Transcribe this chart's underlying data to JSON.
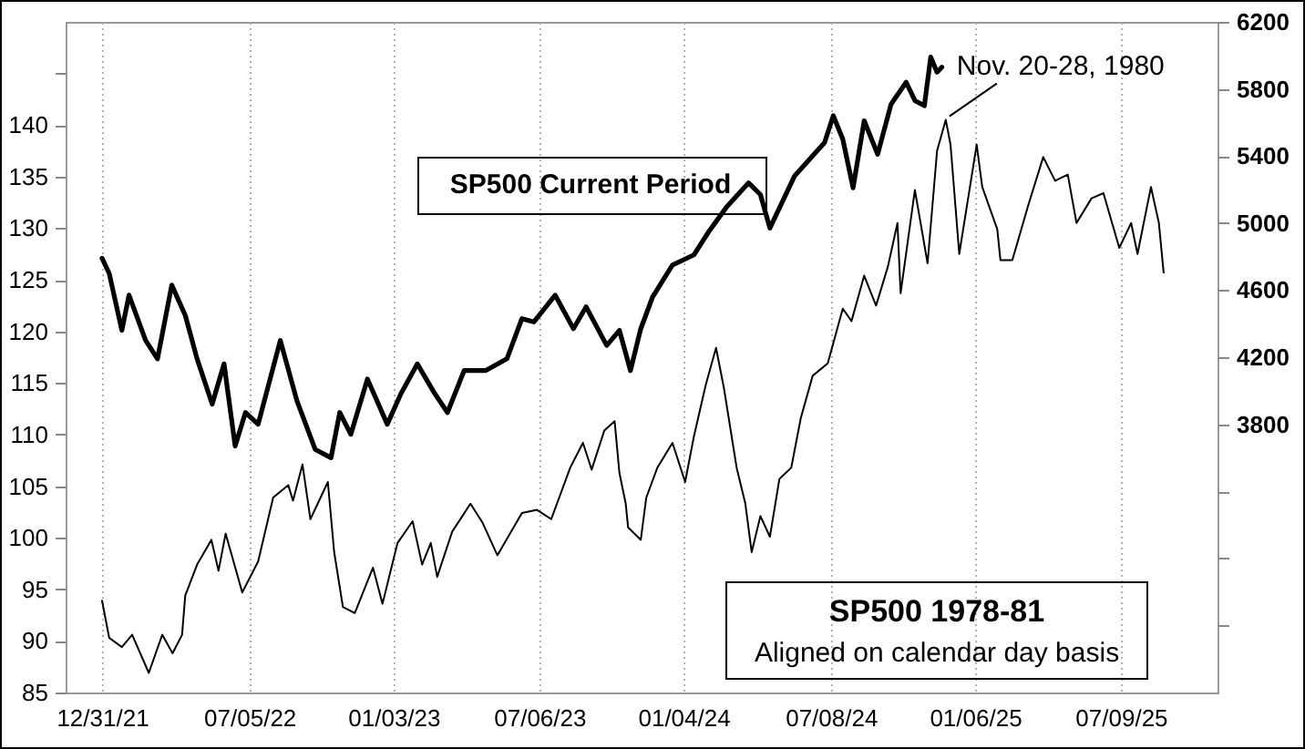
{
  "chart_data": {
    "type": "line",
    "xlim": [
      "2021-11-15",
      "2025-11-08"
    ],
    "xticks": [
      {
        "value": "2021-12-31",
        "label": "12/31/21"
      },
      {
        "value": "2022-07-05",
        "label": "07/05/22"
      },
      {
        "value": "2023-01-03",
        "label": "01/03/23"
      },
      {
        "value": "2023-07-06",
        "label": "07/06/23"
      },
      {
        "value": "2024-01-04",
        "label": "01/04/24"
      },
      {
        "value": "2024-07-08",
        "label": "07/08/24"
      },
      {
        "value": "2025-01-06",
        "label": "01/06/25"
      },
      {
        "value": "2025-07-09",
        "label": "07/09/25"
      }
    ],
    "ylim": [
      85,
      150
    ],
    "yticks": [
      85,
      90,
      95,
      100,
      105,
      110,
      115,
      120,
      125,
      130,
      135,
      140,
      {
        "value": 145,
        "label": null
      }
    ],
    "y2lim": [
      2200,
      6200
    ],
    "y2ticks": [
      {
        "value": 2600,
        "label": null
      },
      {
        "value": 3000,
        "label": null
      },
      {
        "value": 3400,
        "label": null
      },
      3800,
      4200,
      4600,
      5000,
      5400,
      5800,
      6200
    ],
    "grid": "x",
    "annotations": [
      "Aligned on calendar day basis",
      {
        "text": "Nov. 20-28, 1980",
        "x": "2024-11-30",
        "y": 140.5
      }
    ],
    "series": [
      {
        "name": "SP500 1978-81",
        "color": "#000000",
        "x": [
          "2021-12-31",
          "2022-01-09",
          "2022-01-25",
          "2022-02-07",
          "2022-02-28",
          "2022-03-17",
          "2022-03-30",
          "2022-04-11",
          "2022-04-15",
          "2022-04-30",
          "2022-05-18",
          "2022-05-27",
          "2022-06-05",
          "2022-06-26",
          "2022-07-16",
          "2022-08-04",
          "2022-08-23",
          "2022-08-29",
          "2022-09-10",
          "2022-09-20",
          "2022-10-12",
          "2022-10-20",
          "2022-10-31",
          "2022-11-15",
          "2022-12-08",
          "2022-12-20",
          "2023-01-08",
          "2023-01-27",
          "2023-02-08",
          "2023-02-19",
          "2023-02-27",
          "2023-03-18",
          "2023-04-10",
          "2023-04-25",
          "2023-05-14",
          "2023-06-14",
          "2023-07-03",
          "2023-07-21",
          "2023-08-14",
          "2023-08-30",
          "2023-09-10",
          "2023-09-26",
          "2023-10-09",
          "2023-10-15",
          "2023-10-23",
          "2023-10-26",
          "2023-11-11",
          "2023-11-18",
          "2023-12-02",
          "2023-12-21",
          "2024-01-06",
          "2024-01-17",
          "2024-02-01",
          "2024-02-14",
          "2024-02-24",
          "2024-03-11",
          "2024-03-22",
          "2024-03-30",
          "2024-04-10",
          "2024-04-22",
          "2024-05-04",
          "2024-05-19",
          "2024-05-31",
          "2024-06-15",
          "2024-07-04",
          "2024-07-23",
          "2024-08-03",
          "2024-08-19",
          "2024-09-03",
          "2024-09-18",
          "2024-09-30",
          "2024-10-04",
          "2024-10-22",
          "2024-11-07",
          "2024-11-19",
          "2024-11-30",
          "2024-12-06",
          "2024-12-17",
          "2025-01-08",
          "2025-01-15",
          "2025-02-03",
          "2025-02-07",
          "2025-02-22",
          "2025-03-14",
          "2025-04-02",
          "2025-04-17",
          "2025-05-03",
          "2025-05-14",
          "2025-06-02",
          "2025-06-17",
          "2025-07-07",
          "2025-07-22",
          "2025-07-30",
          "2025-08-16",
          "2025-08-26",
          "2025-09-01"
        ],
        "values": [
          93.9,
          90.3,
          89.4,
          90.6,
          86.9,
          90.6,
          88.8,
          90.6,
          94.4,
          97.4,
          99.8,
          96.8,
          100.4,
          94.7,
          97.7,
          103.9,
          105.1,
          103.6,
          107.1,
          101.8,
          105.4,
          98.6,
          93.3,
          92.7,
          97.1,
          93.6,
          99.5,
          101.6,
          97.4,
          99.5,
          96.2,
          100.6,
          103.3,
          101.5,
          98.3,
          102.4,
          102.7,
          101.8,
          106.8,
          109.2,
          106.6,
          110.4,
          111.3,
          106.3,
          103.3,
          101.0,
          99.8,
          103.9,
          106.8,
          109.2,
          105.4,
          109.8,
          114.8,
          118.4,
          114.5,
          106.8,
          103.3,
          98.6,
          102.1,
          100.1,
          105.7,
          106.8,
          111.6,
          115.7,
          116.9,
          122.2,
          121.0,
          125.4,
          122.5,
          126.3,
          130.5,
          123.7,
          133.7,
          126.6,
          137.5,
          140.5,
          138.1,
          127.5,
          138.1,
          134.0,
          129.9,
          126.9,
          126.9,
          132.2,
          136.9,
          134.6,
          135.2,
          130.5,
          132.9,
          133.4,
          128.1,
          130.5,
          127.5,
          134.0,
          130.5,
          125.7
        ]
      },
      {
        "name": "SP500 Current Period",
        "color": "#000000",
        "axis": "y2",
        "x": [
          "2021-12-31",
          "2022-01-09",
          "2022-01-25",
          "2022-02-03",
          "2022-02-24",
          "2022-03-11",
          "2022-03-29",
          "2022-04-15",
          "2022-04-30",
          "2022-05-19",
          "2022-06-03",
          "2022-06-17",
          "2022-06-30",
          "2022-07-16",
          "2022-08-13",
          "2022-09-03",
          "2022-09-26",
          "2022-10-16",
          "2022-10-27",
          "2022-11-10",
          "2022-12-01",
          "2022-12-26",
          "2023-01-12",
          "2023-02-02",
          "2023-02-23",
          "2023-03-12",
          "2023-04-02",
          "2023-04-29",
          "2023-05-26",
          "2023-06-14",
          "2023-06-29",
          "2023-07-26",
          "2023-08-18",
          "2023-09-03",
          "2023-09-29",
          "2023-10-15",
          "2023-10-29",
          "2023-11-11",
          "2023-11-26",
          "2023-12-21",
          "2024-01-17",
          "2024-02-05",
          "2024-02-28",
          "2024-03-26",
          "2024-04-10",
          "2024-04-22",
          "2024-05-23",
          "2024-06-30",
          "2024-07-11",
          "2024-07-23",
          "2024-08-05",
          "2024-08-19",
          "2024-09-05",
          "2024-09-22",
          "2024-10-11",
          "2024-10-22",
          "2024-11-03",
          "2024-11-11",
          "2024-11-19",
          "2024-11-25"
        ],
        "values": [
          4790,
          4700,
          4360,
          4570,
          4300,
          4190,
          4630,
          4450,
          4190,
          3920,
          4160,
          3670,
          3870,
          3800,
          4300,
          3940,
          3650,
          3600,
          3870,
          3740,
          4070,
          3800,
          3980,
          4160,
          3990,
          3870,
          4120,
          4120,
          4190,
          4430,
          4410,
          4570,
          4370,
          4500,
          4270,
          4360,
          4120,
          4370,
          4560,
          4750,
          4810,
          4950,
          5100,
          5240,
          5170,
          4970,
          5280,
          5480,
          5640,
          5500,
          5210,
          5610,
          5410,
          5710,
          5840,
          5730,
          5700,
          5990,
          5900,
          5930
        ]
      }
    ]
  }
}
